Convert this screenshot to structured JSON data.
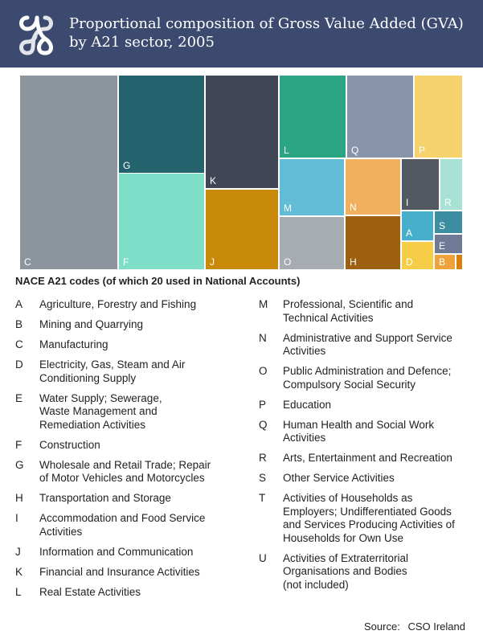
{
  "header": {
    "title_line1": "Proportional composition of Gross Value Added (GVA)",
    "title_line2": "by A21 sector, 2005",
    "logo_icon": "cso-logo-icon",
    "bg_color": "#3b4a6e"
  },
  "chart_data": {
    "type": "treemap",
    "items": [
      {
        "code": "C",
        "share": 23.3,
        "color": "#8c959e"
      },
      {
        "code": "G",
        "share": 9.5,
        "color": "#24636e"
      },
      {
        "code": "F",
        "share": 10.5,
        "color": "#7fdec8"
      },
      {
        "code": "K",
        "share": 10.6,
        "color": "#404656"
      },
      {
        "code": "J",
        "share": 7.2,
        "color": "#c88a08"
      },
      {
        "code": "L",
        "share": 7.1,
        "color": "#2ca585"
      },
      {
        "code": "M",
        "share": 4.9,
        "color": "#62bcd6"
      },
      {
        "code": "O",
        "share": 4.7,
        "color": "#a7acb2"
      },
      {
        "code": "Q",
        "share": 6.3,
        "color": "#8994ab"
      },
      {
        "code": "P",
        "share": 4.4,
        "color": "#f6d26c"
      },
      {
        "code": "N",
        "share": 3.2,
        "color": "#f0b05e"
      },
      {
        "code": "H",
        "share": 3.0,
        "color": "#9d5f10"
      },
      {
        "code": "I",
        "share": 1.6,
        "color": "#535861"
      },
      {
        "code": "R",
        "share": 1.1,
        "color": "#a8e2d4"
      },
      {
        "code": "A",
        "share": 1.0,
        "color": "#47afcb"
      },
      {
        "code": "D",
        "share": 0.9,
        "color": "#f6cd47"
      },
      {
        "code": "S",
        "share": 0.6,
        "color": "#3b8ea2"
      },
      {
        "code": "E",
        "share": 0.5,
        "color": "#6f7b96"
      },
      {
        "code": "B",
        "share": 0.4,
        "color": "#efa23b"
      },
      {
        "code": "T",
        "share": 0.1,
        "color": "#d87f0c"
      }
    ]
  },
  "legend": {
    "heading": "NACE A21 codes (of which 20 used in National Accounts)",
    "left": [
      {
        "code": "A",
        "lines": [
          "Agriculture, Forestry and Fishing"
        ]
      },
      {
        "code": "B",
        "lines": [
          "Mining and Quarrying"
        ]
      },
      {
        "code": "C",
        "lines": [
          "Manufacturing"
        ]
      },
      {
        "code": "D",
        "lines": [
          "Electricity, Gas, Steam and Air",
          "Conditioning Supply"
        ]
      },
      {
        "code": "E",
        "lines": [
          "Water Supply; Sewerage,",
          "Waste Management and",
          "Remediation Activities"
        ]
      },
      {
        "code": "F",
        "lines": [
          "Construction"
        ]
      },
      {
        "code": "G",
        "lines": [
          "Wholesale and Retail Trade; Repair",
          "of Motor Vehicles and Motorcycles"
        ]
      },
      {
        "code": "H",
        "lines": [
          "Transportation and Storage"
        ]
      },
      {
        "code": "I",
        "lines": [
          "Accommodation and Food Service",
          "Activities"
        ]
      },
      {
        "code": "J",
        "lines": [
          "Information and Communication"
        ]
      },
      {
        "code": "K",
        "lines": [
          "Financial and Insurance Activities"
        ]
      },
      {
        "code": "L",
        "lines": [
          "Real Estate Activities"
        ]
      }
    ],
    "right": [
      {
        "code": "M",
        "lines": [
          "Professional, Scientific and",
          "Technical Activities"
        ]
      },
      {
        "code": "N",
        "lines": [
          "Administrative and Support Service",
          "Activities"
        ]
      },
      {
        "code": "O",
        "lines": [
          "Public Administration and Defence;",
          "Compulsory Social Security"
        ]
      },
      {
        "code": "P",
        "lines": [
          "Education"
        ]
      },
      {
        "code": "Q",
        "lines": [
          "Human Health and Social Work",
          "Activities"
        ]
      },
      {
        "code": "R",
        "lines": [
          "Arts, Entertainment and Recreation"
        ]
      },
      {
        "code": "S",
        "lines": [
          "Other Service Activities"
        ]
      },
      {
        "code": "T",
        "lines": [
          "Activities of Households as",
          "Employers; Undifferentiated Goods",
          "and Services Producing Activities of",
          "Households for Own Use"
        ]
      },
      {
        "code": "U",
        "lines": [
          "Activities of Extraterritorial",
          "Organisations and Bodies",
          "(not included)"
        ]
      }
    ]
  },
  "source": {
    "label": "Source:",
    "value": "CSO Ireland"
  }
}
